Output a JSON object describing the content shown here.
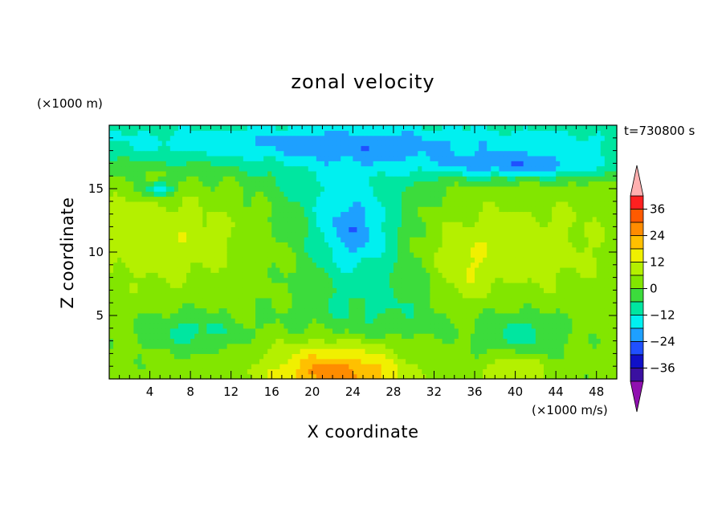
{
  "chart_data": {
    "type": "heatmap",
    "title": "zonal velocity",
    "xlabel": "X coordinate",
    "ylabel": "Z coordinate",
    "x_unit_label": "(×1000 m/s)",
    "y_unit_label": "(×1000 m)",
    "time_label": "t=730800 s",
    "xlim": [
      0,
      50
    ],
    "ylim": [
      0,
      20
    ],
    "x_ticks": [
      "4",
      "8",
      "12",
      "16",
      "20",
      "24",
      "28",
      "32",
      "36",
      "40",
      "44",
      "48"
    ],
    "y_ticks": [
      "5",
      "10",
      "15"
    ],
    "x_tick_values": [
      4,
      8,
      12,
      16,
      20,
      24,
      28,
      32,
      36,
      40,
      44,
      48
    ],
    "y_tick_values": [
      5,
      10,
      15
    ],
    "colorbar": {
      "tick_labels": [
        "36",
        "24",
        "12",
        "0",
        "-12",
        "-24",
        "-36"
      ],
      "tick_values": [
        36,
        24,
        12,
        0,
        -12,
        -24,
        -36
      ],
      "range": [
        -42,
        42
      ],
      "levels": [
        {
          "from": 36,
          "to": 42,
          "color": "#ff2020"
        },
        {
          "from": 30,
          "to": 36,
          "color": "#ff5a00"
        },
        {
          "from": 24,
          "to": 30,
          "color": "#ff8c00"
        },
        {
          "from": 18,
          "to": 24,
          "color": "#ffc000"
        },
        {
          "from": 12,
          "to": 18,
          "color": "#f0f000"
        },
        {
          "from": 6,
          "to": 12,
          "color": "#b4f000"
        },
        {
          "from": 0,
          "to": 6,
          "color": "#82e600"
        },
        {
          "from": -6,
          "to": 0,
          "color": "#3cdc3c"
        },
        {
          "from": -12,
          "to": -6,
          "color": "#00e6a0"
        },
        {
          "from": -18,
          "to": -12,
          "color": "#00f0f0"
        },
        {
          "from": -24,
          "to": -18,
          "color": "#1ea0ff"
        },
        {
          "from": -30,
          "to": -24,
          "color": "#2050ff"
        },
        {
          "from": -36,
          "to": -30,
          "color": "#1010c8"
        },
        {
          "from": -42,
          "to": -36,
          "color": "#3a10a0"
        }
      ],
      "over_color": "#ffb0b0",
      "under_color": "#9010b0"
    },
    "field_features": [
      {
        "x": 22.5,
        "z": 0.5,
        "rx": 6.5,
        "rz": 2.2,
        "value": 26
      },
      {
        "x": 40.0,
        "z": 1.0,
        "rx": 3.2,
        "rz": 1.6,
        "value": 13
      },
      {
        "x": 5.0,
        "z": 11.0,
        "rx": 8.5,
        "rz": 3.5,
        "value": 9
      },
      {
        "x": 41.0,
        "z": 10.5,
        "rx": 9.0,
        "rz": 3.8,
        "value": 7
      },
      {
        "x": 35.0,
        "z": 8.5,
        "rx": 3.0,
        "rz": 3.0,
        "value": 8
      },
      {
        "x": 24.0,
        "z": 11.5,
        "rx": 4.0,
        "rz": 3.0,
        "value": -20
      },
      {
        "x": 40.0,
        "z": 16.8,
        "rx": 9.0,
        "rz": 1.0,
        "value": -18
      },
      {
        "x": 5.0,
        "z": 15.0,
        "rx": 1.5,
        "rz": 0.6,
        "value": -18
      },
      {
        "x": 23.0,
        "z": 15.5,
        "rx": 8.0,
        "rz": 3.5,
        "value": -11
      },
      {
        "x": 8.0,
        "z": 3.8,
        "rx": 5.0,
        "rz": 1.5,
        "value": -10
      },
      {
        "x": 40.5,
        "z": 3.2,
        "rx": 4.0,
        "rz": 2.0,
        "value": -12
      },
      {
        "x": 26.0,
        "z": 6.0,
        "rx": 8.0,
        "rz": 4.0,
        "value": -9
      },
      {
        "x": 25.0,
        "z": 18.5,
        "rx": 25.0,
        "rz": 1.5,
        "value": -9
      },
      {
        "x": 26.0,
        "z": 2.8,
        "rx": 10.0,
        "rz": 0.8,
        "value": 2
      }
    ]
  }
}
